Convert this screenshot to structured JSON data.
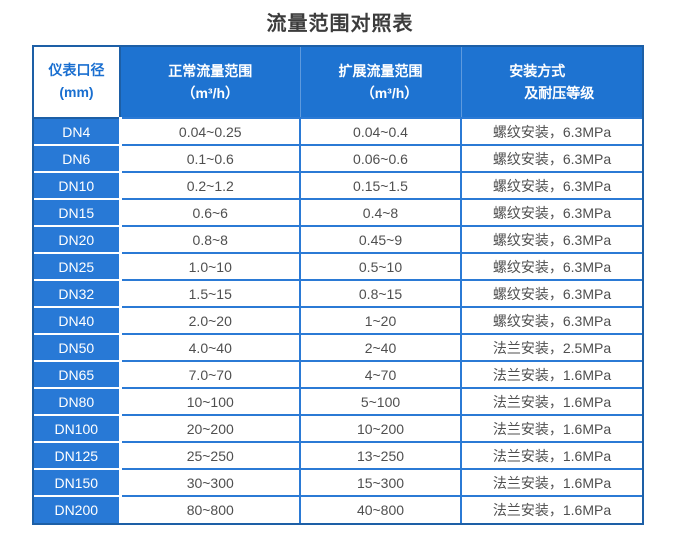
{
  "title": "流量范围对照表",
  "table": {
    "header": {
      "col1": {
        "line1": "仪表口径",
        "line2": "(mm)"
      },
      "col2": {
        "line1": "正常流量范围",
        "line2": "（m³/h）"
      },
      "col3": {
        "line1": "扩展流量范围",
        "line2": "（m³/h）"
      },
      "col4": {
        "line1": "安装方式",
        "line2": "及耐压等级"
      }
    },
    "rows": [
      {
        "dn": "DN4",
        "normal": "0.04~0.25",
        "extended": "0.04~0.4",
        "install": "螺纹安装，6.3MPa"
      },
      {
        "dn": "DN6",
        "normal": "0.1~0.6",
        "extended": "0.06~0.6",
        "install": "螺纹安装，6.3MPa"
      },
      {
        "dn": "DN10",
        "normal": "0.2~1.2",
        "extended": "0.15~1.5",
        "install": "螺纹安装，6.3MPa"
      },
      {
        "dn": "DN15",
        "normal": "0.6~6",
        "extended": "0.4~8",
        "install": "螺纹安装，6.3MPa"
      },
      {
        "dn": "DN20",
        "normal": "0.8~8",
        "extended": "0.45~9",
        "install": "螺纹安装，6.3MPa"
      },
      {
        "dn": "DN25",
        "normal": "1.0~10",
        "extended": "0.5~10",
        "install": "螺纹安装，6.3MPa"
      },
      {
        "dn": "DN32",
        "normal": "1.5~15",
        "extended": "0.8~15",
        "install": "螺纹安装，6.3MPa"
      },
      {
        "dn": "DN40",
        "normal": "2.0~20",
        "extended": "1~20",
        "install": "螺纹安装，6.3MPa"
      },
      {
        "dn": "DN50",
        "normal": "4.0~40",
        "extended": "2~40",
        "install": "法兰安装，2.5MPa"
      },
      {
        "dn": "DN65",
        "normal": "7.0~70",
        "extended": "4~70",
        "install": "法兰安装，1.6MPa"
      },
      {
        "dn": "DN80",
        "normal": "10~100",
        "extended": "5~100",
        "install": "法兰安装，1.6MPa"
      },
      {
        "dn": "DN100",
        "normal": "20~200",
        "extended": "10~200",
        "install": "法兰安装，1.6MPa"
      },
      {
        "dn": "DN125",
        "normal": "25~250",
        "extended": "13~250",
        "install": "法兰安装，1.6MPa"
      },
      {
        "dn": "DN150",
        "normal": "30~300",
        "extended": "15~300",
        "install": "法兰安装，1.6MPa"
      },
      {
        "dn": "DN200",
        "normal": "80~800",
        "extended": "40~800",
        "install": "法兰安装，1.6MPa"
      }
    ]
  },
  "chart_data": {
    "type": "table",
    "title": "流量范围对照表",
    "columns": [
      "仪表口径(mm)",
      "正常流量范围（m³/h）",
      "扩展流量范围（m³/h）",
      "安装方式及耐压等级"
    ],
    "rows": [
      [
        "DN4",
        "0.04~0.25",
        "0.04~0.4",
        "螺纹安装，6.3MPa"
      ],
      [
        "DN6",
        "0.1~0.6",
        "0.06~0.6",
        "螺纹安装，6.3MPa"
      ],
      [
        "DN10",
        "0.2~1.2",
        "0.15~1.5",
        "螺纹安装，6.3MPa"
      ],
      [
        "DN15",
        "0.6~6",
        "0.4~8",
        "螺纹安装，6.3MPa"
      ],
      [
        "DN20",
        "0.8~8",
        "0.45~9",
        "螺纹安装，6.3MPa"
      ],
      [
        "DN25",
        "1.0~10",
        "0.5~10",
        "螺纹安装，6.3MPa"
      ],
      [
        "DN32",
        "1.5~15",
        "0.8~15",
        "螺纹安装，6.3MPa"
      ],
      [
        "DN40",
        "2.0~20",
        "1~20",
        "螺纹安装，6.3MPa"
      ],
      [
        "DN50",
        "4.0~40",
        "2~40",
        "法兰安装，2.5MPa"
      ],
      [
        "DN65",
        "7.0~70",
        "4~70",
        "法兰安装，1.6MPa"
      ],
      [
        "DN80",
        "10~100",
        "5~100",
        "法兰安装，1.6MPa"
      ],
      [
        "DN100",
        "20~200",
        "10~200",
        "法兰安装，1.6MPa"
      ],
      [
        "DN125",
        "25~250",
        "13~250",
        "法兰安装，1.6MPa"
      ],
      [
        "DN150",
        "30~300",
        "15~300",
        "法兰安装，1.6MPa"
      ],
      [
        "DN200",
        "80~800",
        "40~800",
        "法兰安装，1.6MPa"
      ]
    ]
  },
  "colors": {
    "header_blue": "#1e73d1",
    "dn_column_blue": "#2879d6",
    "inner_border_blue": "#2b7ad5",
    "outer_border_blue": "#1d5fa6",
    "header_separator_blue": "#5e9ade",
    "header_first_text_blue": "#1a6fd0",
    "data_text_gray": "#4f4f4f",
    "title_text": "#3c3c3c"
  }
}
